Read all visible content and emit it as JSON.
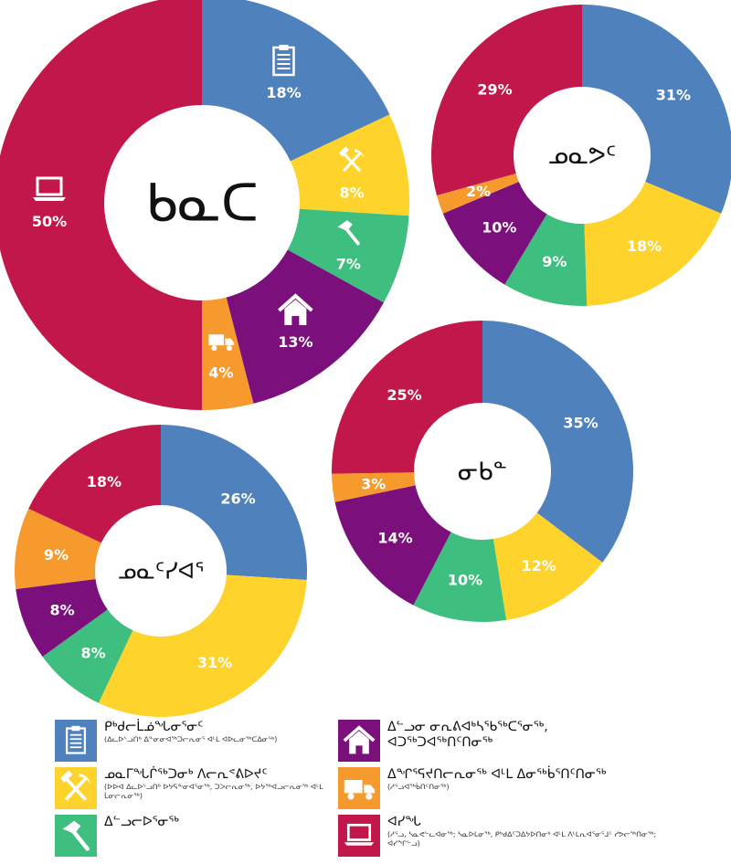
{
  "colors": {
    "blue": "#4f81bd",
    "yellow": "#fed42c",
    "green": "#3fbf7f",
    "purple": "#7b0f7b",
    "orange": "#f79a2e",
    "red": "#c2174a"
  },
  "chart_data": [
    {
      "type": "pie",
      "variant": "donut",
      "center_label": "ᑲᓇᑕ",
      "slices": [
        {
          "category": "office",
          "value": 18,
          "label": "18%",
          "color": "#4f81bd",
          "icon": "clipboard-icon"
        },
        {
          "category": "mining",
          "value": 8,
          "label": "8%",
          "color": "#fed42c",
          "icon": "pick-hammer-icon"
        },
        {
          "category": "construction",
          "value": 7,
          "label": "7%",
          "color": "#3fbf7f",
          "icon": "hammer-icon"
        },
        {
          "category": "housing",
          "value": 13,
          "label": "13%",
          "color": "#7b0f7b",
          "icon": "house-icon"
        },
        {
          "category": "transport",
          "value": 4,
          "label": "4%",
          "color": "#f79a2e",
          "icon": "truck-icon"
        },
        {
          "category": "other",
          "value": 50,
          "label": "50%",
          "color": "#c2174a",
          "icon": "laptop-icon"
        }
      ]
    },
    {
      "type": "pie",
      "variant": "donut",
      "center_label": "ᓄᓇᕗᑦ",
      "slices": [
        {
          "category": "office",
          "value": 31,
          "label": "31%",
          "color": "#4f81bd"
        },
        {
          "category": "mining",
          "value": 18,
          "label": "18%",
          "color": "#fed42c"
        },
        {
          "category": "construction",
          "value": 9,
          "label": "9%",
          "color": "#3fbf7f"
        },
        {
          "category": "housing",
          "value": 10,
          "label": "10%",
          "color": "#7b0f7b"
        },
        {
          "category": "transport",
          "value": 2,
          "label": "2%",
          "color": "#f79a2e"
        },
        {
          "category": "other",
          "value": 29,
          "label": "29%",
          "color": "#c2174a"
        }
      ]
    },
    {
      "type": "pie",
      "variant": "donut",
      "center_label": "ᓂᑲᓐ",
      "slices": [
        {
          "category": "office",
          "value": 35,
          "label": "35%",
          "color": "#4f81bd"
        },
        {
          "category": "mining",
          "value": 12,
          "label": "12%",
          "color": "#fed42c"
        },
        {
          "category": "construction",
          "value": 10,
          "label": "10%",
          "color": "#3fbf7f"
        },
        {
          "category": "housing",
          "value": 14,
          "label": "14%",
          "color": "#7b0f7b"
        },
        {
          "category": "transport",
          "value": 3,
          "label": "3%",
          "color": "#f79a2e"
        },
        {
          "category": "other",
          "value": 25,
          "label": "25%",
          "color": "#c2174a"
        }
      ]
    },
    {
      "type": "pie",
      "variant": "donut",
      "center_label": "ᓄᓇᑦᓯᐊᕐ",
      "slices": [
        {
          "category": "office",
          "value": 26,
          "label": "26%",
          "color": "#4f81bd"
        },
        {
          "category": "mining",
          "value": 31,
          "label": "31%",
          "color": "#fed42c"
        },
        {
          "category": "construction",
          "value": 8,
          "label": "8%",
          "color": "#3fbf7f"
        },
        {
          "category": "housing",
          "value": 8,
          "label": "8%",
          "color": "#7b0f7b"
        },
        {
          "category": "transport",
          "value": 9,
          "label": "9%",
          "color": "#f79a2e"
        },
        {
          "category": "other",
          "value": 18,
          "label": "18%",
          "color": "#c2174a"
        }
      ]
    }
  ],
  "legend": [
    {
      "key": "office",
      "color": "#4f81bd",
      "icon": "clipboard-icon",
      "title": "ᑭᒃᑯᓕᒫᓅᖓᓂᕐᓂᑦ",
      "subtitle": "(ᐃᓚᐅᔅᓗᑎᒃ ᐃᓐᓂᓂᐊᖅᑐᓕᕆᓂᕐ ᐊᒻᒪ ᐊᐅᓚᓂᖅᑕᐃᓂᕐᒃ)"
    },
    {
      "key": "housing",
      "color": "#7b0f7b",
      "icon": "house-icon",
      "title": "ᐃᓪᓗᓂ ᓂᕆᕕᐊᒃᓴᖃᖅᑕᕐᓂᖅ,",
      "title2": "ᐊᑐᖅᑐᐊᖅᑎᑦᑎᓂᖅ",
      "subtitle": ""
    },
    {
      "key": "mining",
      "color": "#fed42c",
      "icon": "pick-hammer-icon",
      "title": "ᓄᓇᒥᖓᒌᖅᑐᓂᒃ ᐱᓕᕆᕝᕕᐅᔪᑦ",
      "subtitle": "(ᐅᐅᐊ ᐃᓚᐅᔅᓗᑎᒃ ᐅᔭᕋᖕᓂᐊᕐᓂᖅ, ᑐᐳᓕᕆᓂᖅ, ᐅᔭᖅᐊᓗᓕᕆᓂᖅ ᐊᒻᒪ ᒫᓂᓕᕆᓂᖅ)"
    },
    {
      "key": "transport",
      "color": "#f79a2e",
      "icon": "truck-icon",
      "title": "ᐃᖏᕐᕋᔪᑎᓕᕆᓂᖅ ᐊᒻᒪ ᐃᓂᖅᑳᕐᑎᑦᑎᓂᖅ",
      "subtitle": "(ᓱᕐᓗᐊᖅᑳᑎᑦᑎᓂᖅ)"
    },
    {
      "key": "construction",
      "color": "#3fbf7f",
      "icon": "hammer-icon",
      "title": "ᐃᓪᓗᓕᐅᕐᓂᖅ",
      "subtitle": ""
    },
    {
      "key": "other",
      "color": "#c2174a",
      "icon": "laptop-icon",
      "title": "ᐊᓯᖓ",
      "subtitle": "(ᓱᕐᓗ, ᓴᓇᕙᓪᓚᐊᓂᖅ; ᓴᓇᐅᒪᓂᖅ, ᑭᒃᑯᐃᑦᑐᐃᔭᐅᑎᓂᒃ ᐊᒻᒪ ᐱᒻᒪᕆᐊᕐᓂᕐᒧᑦ ᓯᕗᓕᖅᑎᓂᖅ; ᐊᓯᖏᓪᓗ)"
    }
  ]
}
